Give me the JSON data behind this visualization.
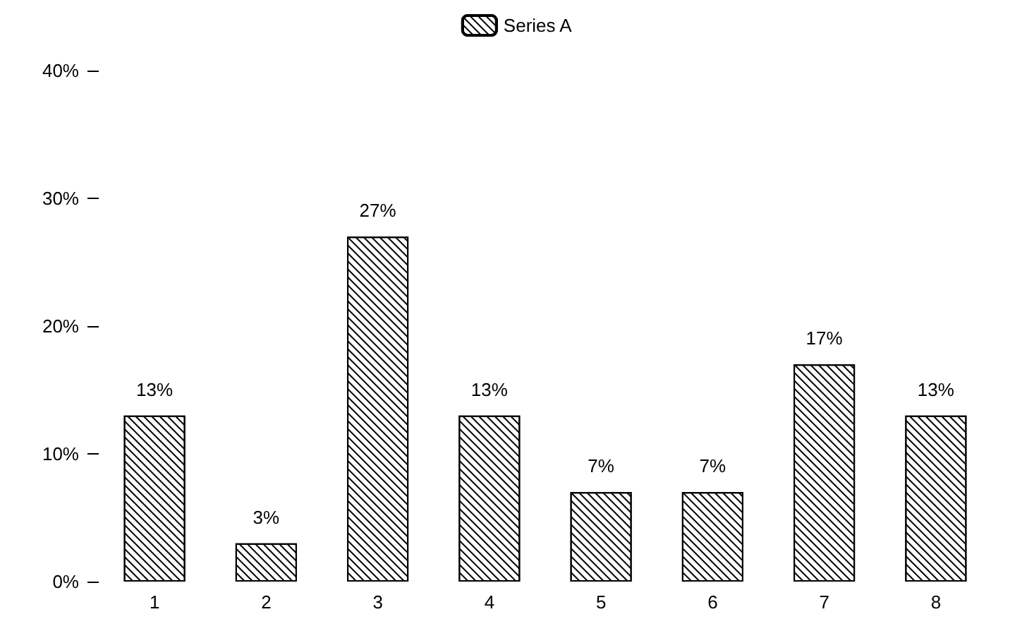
{
  "chart_data": {
    "type": "bar",
    "categories": [
      "1",
      "2",
      "3",
      "4",
      "5",
      "6",
      "7",
      "8"
    ],
    "series": [
      {
        "name": "Series A",
        "color": "#ffffff",
        "values": [
          13,
          3,
          27,
          13,
          7,
          7,
          17,
          13
        ],
        "value_labels": [
          "13%",
          "3%",
          "27%",
          "13%",
          "7%",
          "7%",
          "17%",
          "13%"
        ]
      }
    ],
    "ylim": [
      0,
      40
    ],
    "yticks": [
      {
        "value": 0,
        "label": "0%"
      },
      {
        "value": 10,
        "label": "10%"
      },
      {
        "value": 20,
        "label": "20%"
      },
      {
        "value": 30,
        "label": "30%"
      },
      {
        "value": 40,
        "label": "40%"
      }
    ],
    "grid": false,
    "legend": "top"
  }
}
